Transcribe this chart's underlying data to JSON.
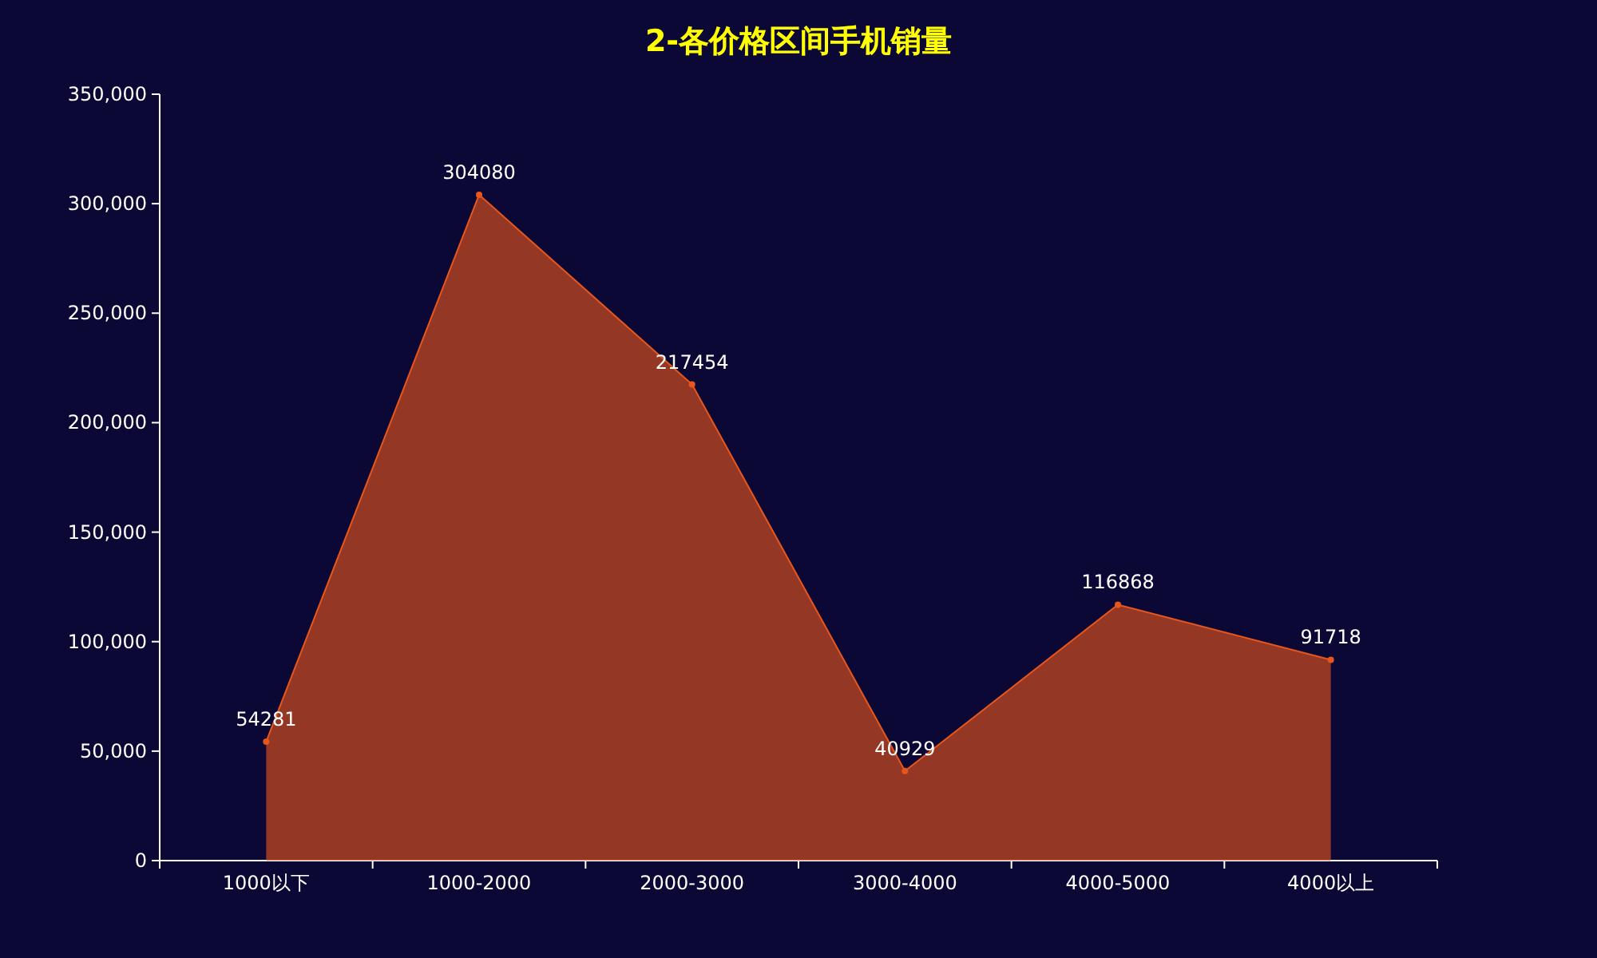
{
  "chart_data": {
    "type": "area",
    "title": "2-各价格区间手机销量",
    "categories": [
      "1000以下",
      "1000-2000",
      "2000-3000",
      "3000-4000",
      "4000-5000",
      "4000以上"
    ],
    "values": [
      54281,
      304080,
      217454,
      40929,
      116868,
      91718
    ],
    "color": "#e8561c",
    "data_labels": true,
    "marker": "circle",
    "grid": false,
    "ylim": [
      0,
      350000
    ],
    "yticks": [
      0,
      {
        "value": 50000,
        "label": "50,000"
      },
      {
        "value": 100000,
        "label": "100,000"
      },
      {
        "value": 150000,
        "label": "150,000"
      },
      {
        "value": 200000,
        "label": "200,000"
      },
      {
        "value": 250000,
        "label": "250,000"
      },
      {
        "value": 300000,
        "label": "300,000"
      },
      {
        "value": 350000,
        "label": "350,000"
      }
    ]
  }
}
